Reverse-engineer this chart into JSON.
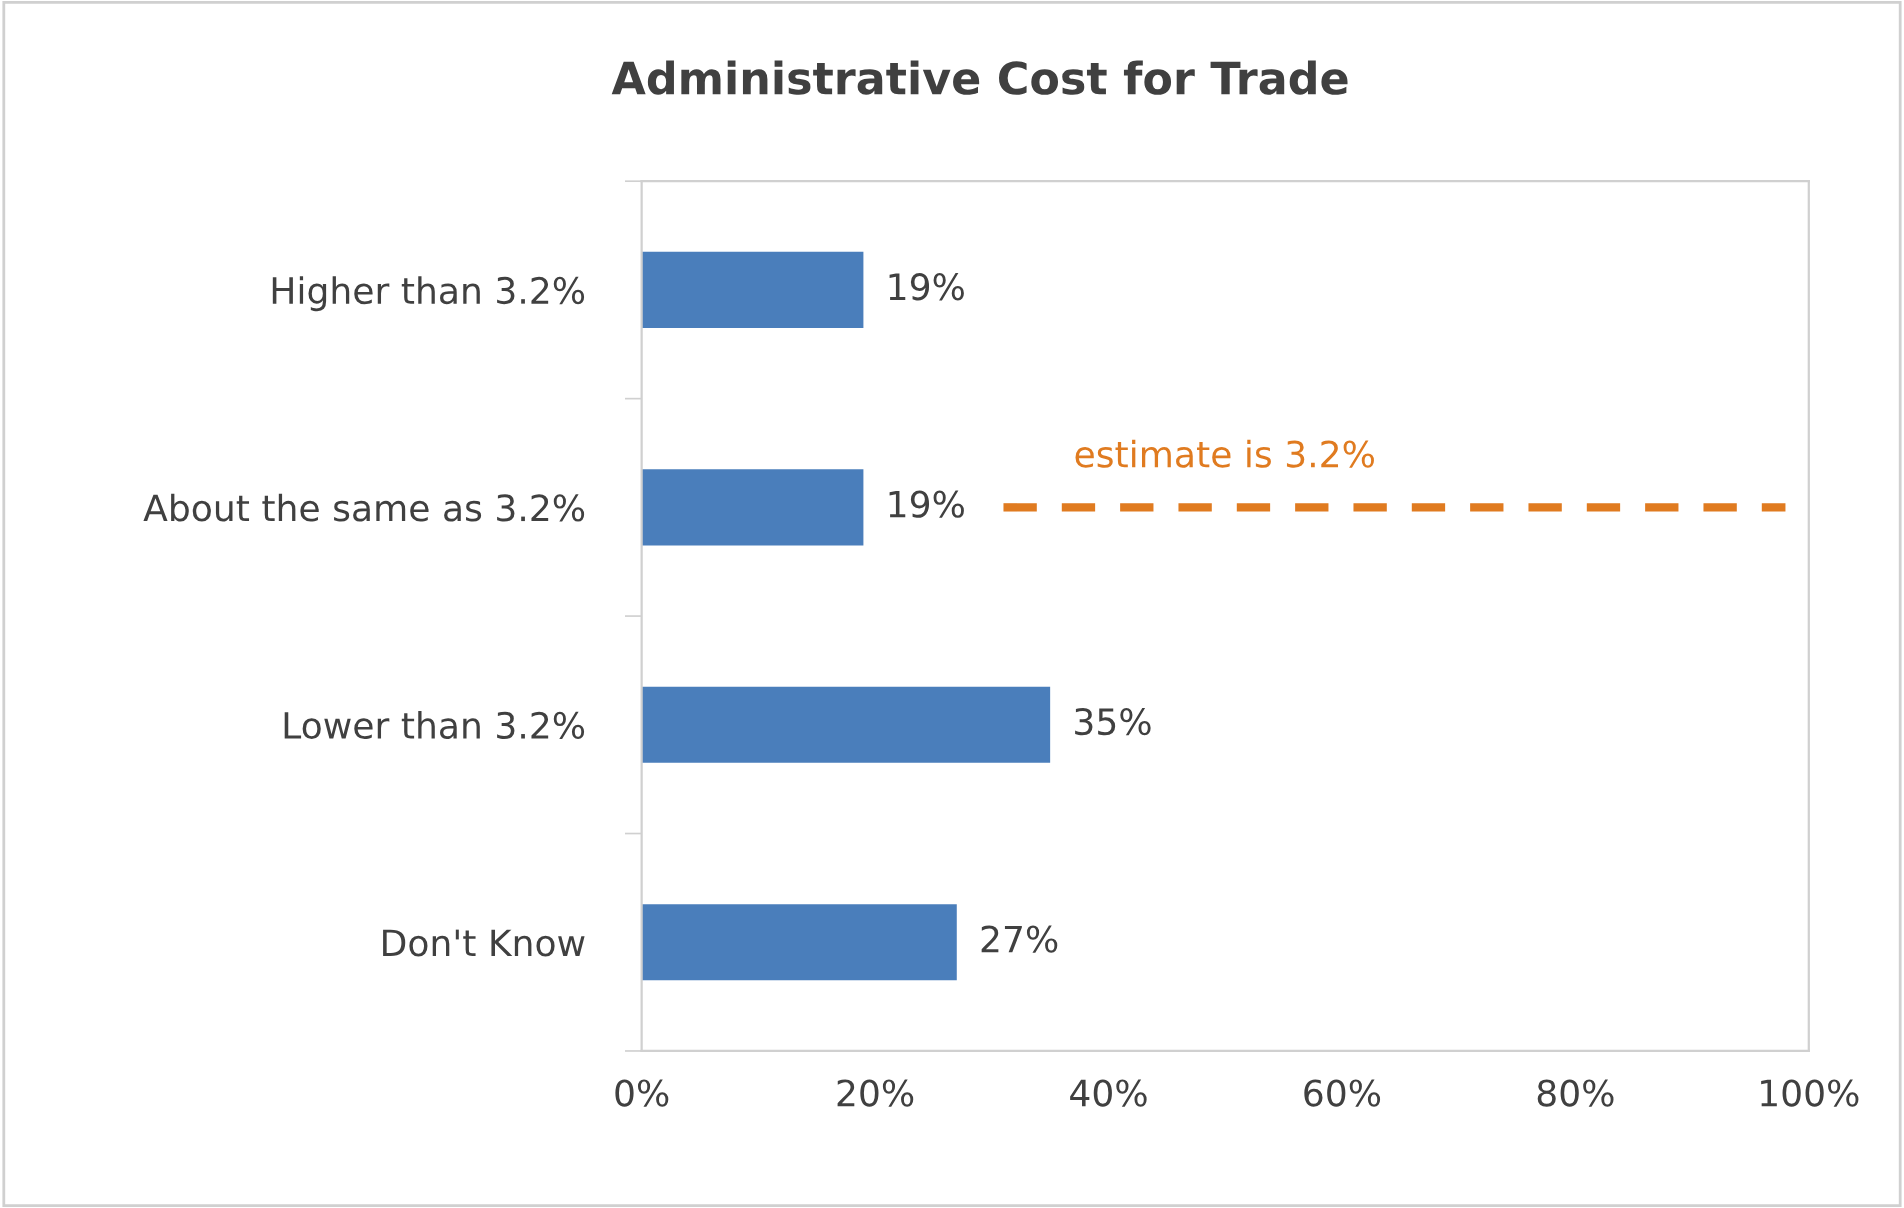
{
  "chart_data": {
    "type": "bar",
    "orientation": "horizontal",
    "title": "Administrative Cost for Trade",
    "categories": [
      "Higher than 3.2%",
      "About the same as 3.2%",
      "Lower than 3.2%",
      "Don't Know"
    ],
    "values": [
      19,
      19,
      35,
      27
    ],
    "color": "#4a7ebb",
    "value_labels": [
      "19%",
      "19%",
      "35%",
      "27%"
    ],
    "xlim": [
      0,
      100
    ],
    "xticks": [
      {
        "value": 0,
        "label": "0%"
      },
      {
        "value": 20,
        "label": "20%"
      },
      {
        "value": 40,
        "label": "40%"
      },
      {
        "value": 60,
        "label": "60%"
      },
      {
        "value": 80,
        "label": "80%"
      },
      {
        "value": 100,
        "label": "100%"
      }
    ],
    "grid": false,
    "legend": false,
    "ref_lines": [
      {
        "axis": "y",
        "value": "About the same as 3.2%",
        "label": "estimate is 3.2%",
        "color": "#e07b20",
        "line_style": "dashed"
      }
    ]
  }
}
